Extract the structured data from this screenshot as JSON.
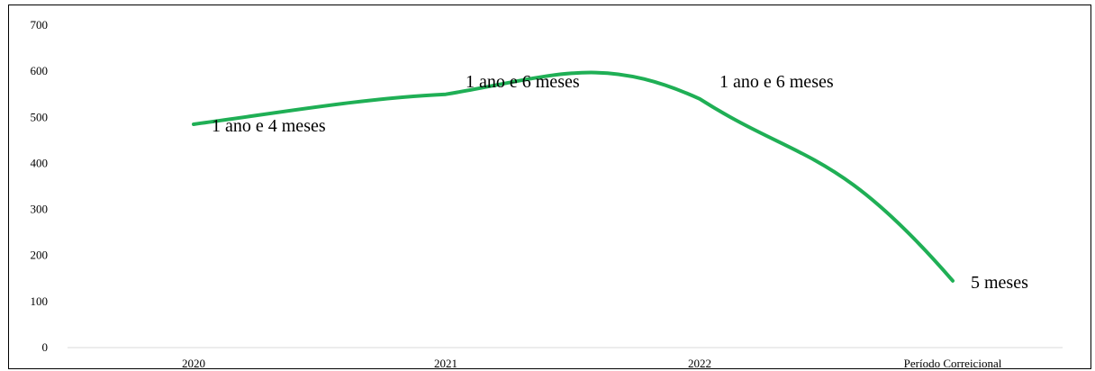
{
  "chart_data": {
    "type": "line",
    "categories": [
      "2020",
      "2021",
      "2022",
      "Período Correicional"
    ],
    "series": [
      {
        "values": [
          485,
          550,
          540,
          145
        ],
        "data_labels": [
          "1 ano e 4 meses",
          "1 ano e 6 meses",
          "1 ano e 6 meses",
          "5 meses"
        ]
      }
    ],
    "title": "",
    "xlabel": "",
    "ylabel": "",
    "ylim": [
      0,
      700
    ],
    "yticks": [
      0,
      100,
      200,
      300,
      400,
      500,
      600,
      700
    ],
    "grid": false,
    "legend": "none",
    "smooth": true,
    "line_color": "#1faf55"
  }
}
